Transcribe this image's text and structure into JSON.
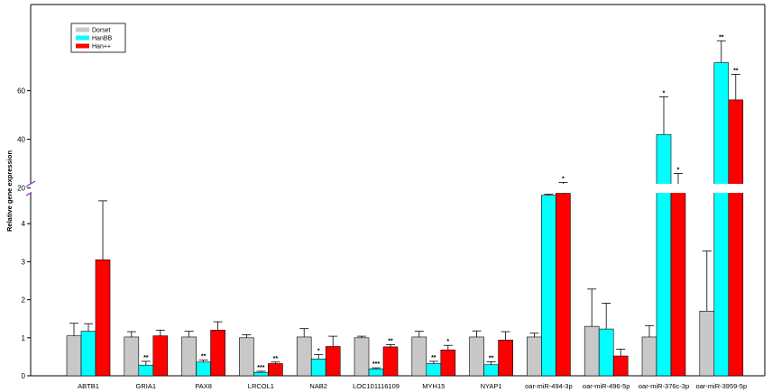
{
  "chart_data": {
    "type": "bar",
    "title": "",
    "xlabel": "",
    "ylabel": "Relative gene expression",
    "y_axis_break": true,
    "lower_ylim": [
      0,
      4.6
    ],
    "lower_ticks": [
      0,
      1,
      2,
      3,
      4
    ],
    "upper_ylim": [
      14,
      80
    ],
    "upper_ticks": [
      20,
      40,
      60
    ],
    "grid": false,
    "legend_position": "top-left",
    "categories": [
      "ABTB1",
      "GRIA1",
      "PAX8",
      "LRCOL1",
      "NAB2",
      "LOC101116109",
      "MYH15",
      "NYAP1",
      "oar-miR-494-3p",
      "oar-miR-496-5p",
      "oar-miR-376c-3p",
      "oar-miR-3959-5p"
    ],
    "series": [
      {
        "name": "Dorset",
        "color": "#c8c8c8",
        "values": [
          1.05,
          1.02,
          1.02,
          1.0,
          1.02,
          1.0,
          1.02,
          1.02,
          1.02,
          1.3,
          1.02,
          1.7
        ],
        "errors": [
          0.33,
          0.14,
          0.15,
          0.08,
          0.22,
          0.04,
          0.15,
          0.16,
          0.1,
          0.98,
          0.3,
          1.58
        ],
        "significance": [
          "",
          "",
          "",
          "",
          "",
          "",
          "",
          "",
          "",
          "",
          "",
          ""
        ]
      },
      {
        "name": "HanBB",
        "color": "#00ffff",
        "values": [
          1.17,
          0.28,
          0.36,
          0.09,
          0.44,
          0.18,
          0.32,
          0.29,
          17,
          1.23,
          42,
          71.5
        ],
        "errors": [
          0.2,
          0.1,
          0.05,
          0.03,
          0.12,
          0.03,
          0.06,
          0.08,
          0.4,
          0.68,
          15.5,
          9
        ],
        "significance": [
          "",
          "**",
          "**",
          "***",
          "*",
          "***",
          "**",
          "**",
          "***",
          "",
          "*",
          "**"
        ]
      },
      {
        "name": "Han++",
        "color": "#ff0000",
        "values": [
          3.05,
          1.05,
          1.2,
          0.32,
          0.77,
          0.76,
          0.68,
          0.94,
          17.8,
          0.52,
          19.2,
          56.2
        ],
        "errors": [
          1.55,
          0.15,
          0.22,
          0.04,
          0.27,
          0.06,
          0.12,
          0.22,
          4.5,
          0.18,
          6.8,
          10.5
        ],
        "significance": [
          "",
          "",
          "",
          "**",
          "",
          "**",
          "*",
          "",
          "*",
          "",
          "*",
          "**"
        ]
      }
    ]
  }
}
